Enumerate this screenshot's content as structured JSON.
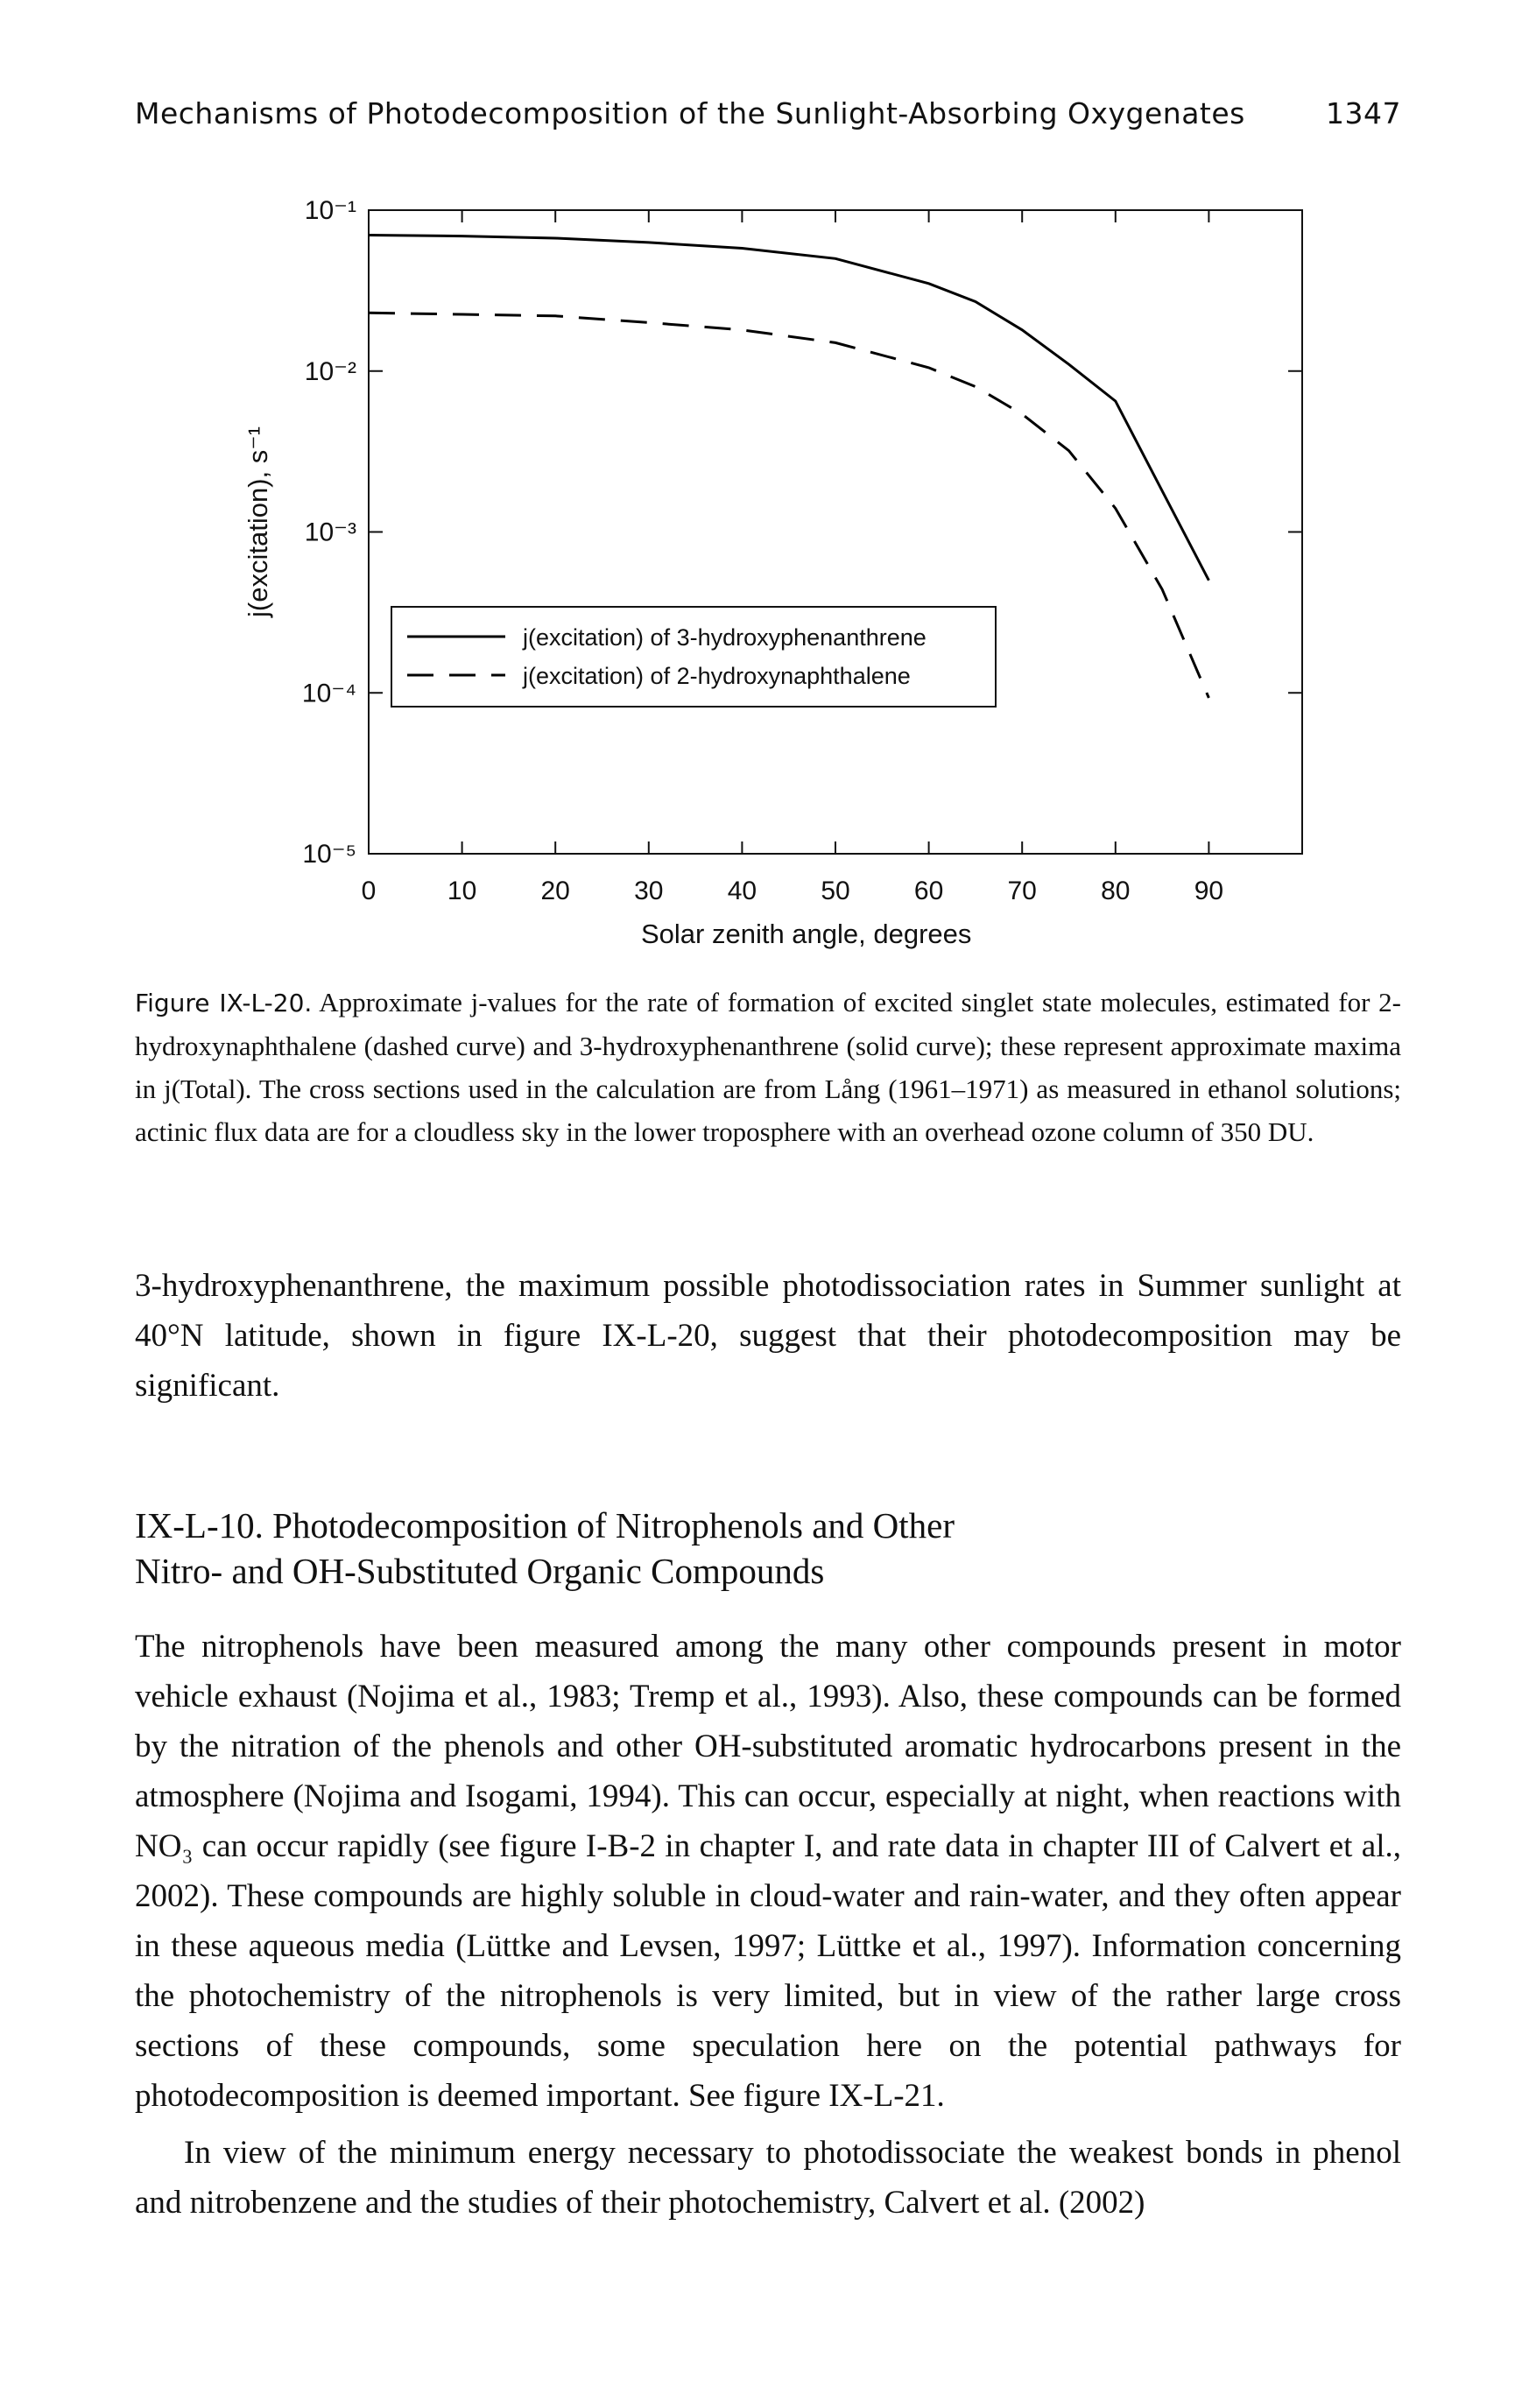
{
  "header": {
    "running_title": "Mechanisms of Photodecomposition of the Sunlight-Absorbing Oxygenates",
    "page_number": "1347"
  },
  "chart_data": {
    "type": "line",
    "x": [
      0,
      10,
      20,
      30,
      40,
      50,
      60,
      65,
      70,
      75,
      80,
      85,
      90
    ],
    "series": [
      {
        "name": "j(excitation) of 3-hydroxyphenanthrene",
        "color": "#000000",
        "dash": "solid",
        "values": [
          0.07,
          0.069,
          0.067,
          0.063,
          0.058,
          0.05,
          0.035,
          0.027,
          0.018,
          0.011,
          0.0065,
          0.0018,
          0.0005
        ]
      },
      {
        "name": "j(excitation) of 2-hydroxynaphthalene",
        "color": "#000000",
        "dash": "dashed",
        "values": [
          0.023,
          0.0225,
          0.022,
          0.02,
          0.018,
          0.015,
          0.0105,
          0.008,
          0.0054,
          0.0032,
          0.0014,
          0.00044,
          9.3e-05
        ]
      }
    ],
    "xlabel": "Solar zenith angle, degrees",
    "ylabel": "j(excitation), s⁻¹",
    "xlim": [
      0,
      100
    ],
    "xticks": [
      0,
      10,
      20,
      30,
      40,
      50,
      60,
      70,
      80,
      90
    ],
    "ylim": [
      1e-05,
      0.1
    ],
    "log_y": true,
    "yticks": [
      {
        "value": 0.1,
        "label": "10⁻¹"
      },
      {
        "value": 0.01,
        "label": "10⁻²"
      },
      {
        "value": 0.001,
        "label": "10⁻³"
      },
      {
        "value": 0.0001,
        "label": "10⁻⁴"
      },
      {
        "value": 1e-05,
        "label": "10⁻⁵"
      }
    ],
    "legend": "center-left"
  },
  "caption": {
    "label": "Figure IX-L-20.",
    "text": "Approximate j-values for the rate of formation of excited singlet state molecules, estimated for 2-hydroxynaphthalene (dashed curve) and 3-hydroxyphenanthrene (solid curve); these represent approximate maxima in j(Total). The cross sections used in the calculation are from Lång (1961–1971) as measured in ethanol solutions; actinic flux data are for a cloudless sky in the lower troposphere with an overhead ozone column of 350 DU."
  },
  "paragraphs": [
    "3-hydroxyphenanthrene, the maximum possible photodissociation rates in Summer sunlight at 40°N latitude, shown in figure IX-L-20, suggest that their photodecomposition may be significant."
  ],
  "section": {
    "heading": [
      "IX-L-10. Photodecomposition of Nitrophenols and Other",
      "Nitro- and OH-Substituted Organic Compounds"
    ],
    "paragraphs": [
      "The nitrophenols have been measured among the many other compounds present in motor vehicle exhaust (Nojima et al., 1983; Tremp et al., 1993). Also, these compounds can be formed by the nitration of the phenols and other OH-substituted aromatic hydrocarbons present in the atmosphere (Nojima and Isogami, 1994). This can occur, especially at night, when reactions with NO₃ can occur rapidly (see figure I-B-2 in chapter I, and rate data in chapter III of Calvert et al., 2002). These compounds are highly soluble in cloud-water and rain-water, and they often appear in these aqueous media (Lüttke and Levsen, 1997; Lüttke et al., 1997). Information concerning the photochemistry of the nitrophenols is very limited, but in view of the rather large cross sections of these compounds, some speculation here on the potential pathways for photodecomposition is deemed important. See figure IX-L-21.",
      "In view of the minimum energy necessary to photodissociate the weakest bonds in phenol and nitrobenzene and the studies of their photochemistry, Calvert et al. (2002)"
    ]
  }
}
